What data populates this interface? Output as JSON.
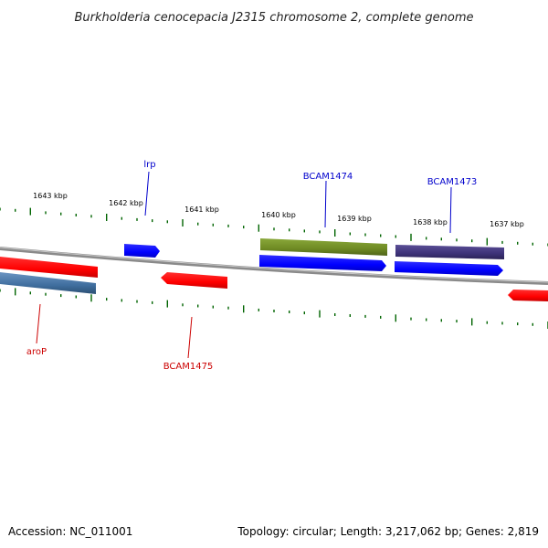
{
  "title": "Burkholderia cenocepacia J2315 chromosome 2, complete genome",
  "accession": "Accession: NC_011001",
  "summary": "Topology: circular; Length: 3,217,062 bp; Genes: 2,819",
  "tick_labels": [
    "1643 kbp",
    "1642 kbp",
    "1641 kbp",
    "1640 kbp",
    "1639 kbp",
    "1638 kbp",
    "1637 kbp"
  ],
  "gene_labels": [
    {
      "name": "lrp",
      "color": "#0000cc"
    },
    {
      "name": "BCAM1474",
      "color": "#0000cc"
    },
    {
      "name": "BCAM1473",
      "color": "#0000cc"
    },
    {
      "name": "aroP",
      "color": "#cc0000"
    },
    {
      "name": "BCAM1475",
      "color": "#cc0000"
    }
  ],
  "colors": {
    "forward_cds": "#0000ff",
    "reverse_cds": "#ff0000",
    "olive_feature": "#6e8a23",
    "purple_feature": "#3d3278",
    "steel_feature": "#3f6e9e",
    "tick": "#006400",
    "backbone": "#8a8a8a"
  }
}
